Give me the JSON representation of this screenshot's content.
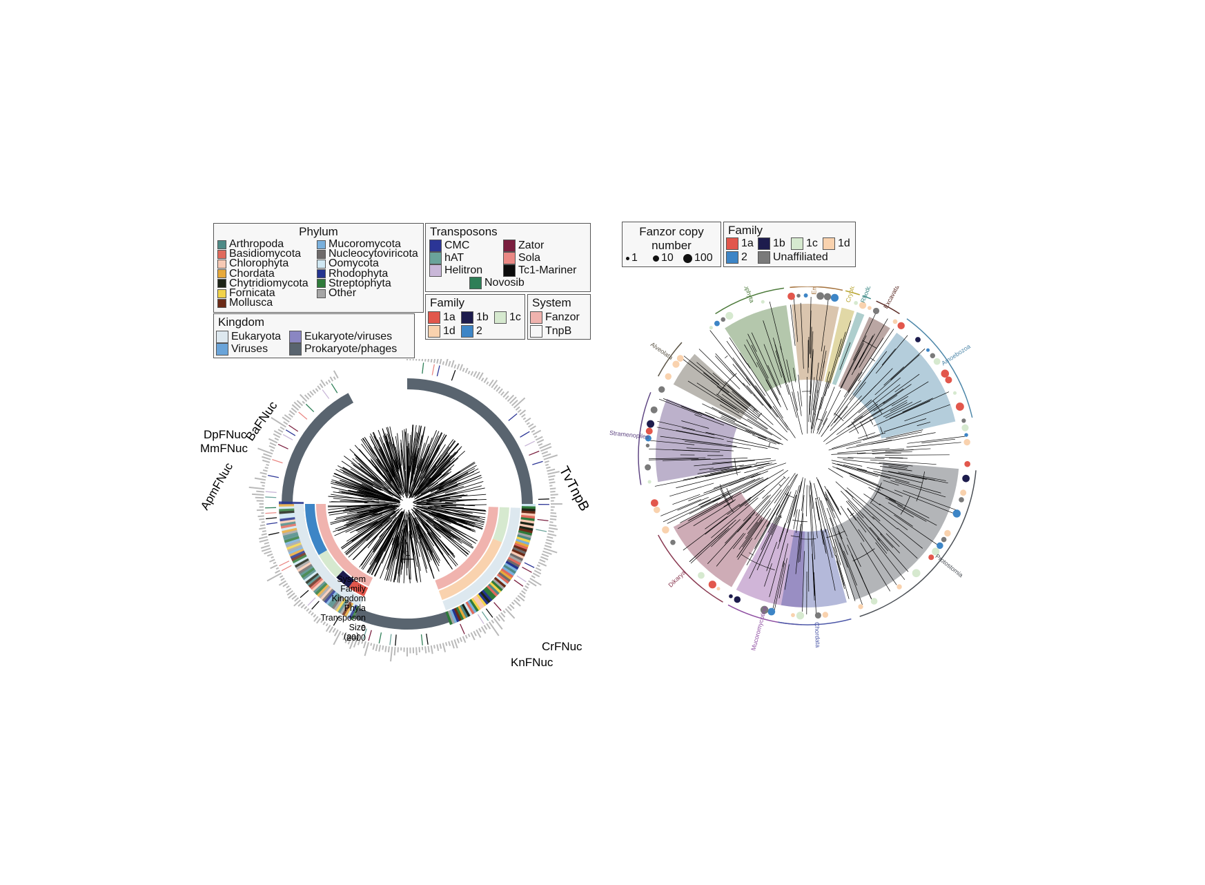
{
  "phylum_legend": {
    "title": "Phylum",
    "items": [
      {
        "label": "Arthropoda",
        "color": "#4e8a86"
      },
      {
        "label": "Basidiomycota",
        "color": "#e06a5c"
      },
      {
        "label": "Chlorophyta",
        "color": "#f7c9b4"
      },
      {
        "label": "Chordata",
        "color": "#e7a93a"
      },
      {
        "label": "Chytridiomycota",
        "color": "#1d2417"
      },
      {
        "label": "Fornicata",
        "color": "#f2d34a"
      },
      {
        "label": "Mollusca",
        "color": "#6b2a17"
      },
      {
        "label": "Mucoromycota",
        "color": "#7ab0dc"
      },
      {
        "label": "Nucleocytoviricota",
        "color": "#6e6a6a"
      },
      {
        "label": "Oomycota",
        "color": "#cfe7f2"
      },
      {
        "label": "Rhodophyta",
        "color": "#24348f"
      },
      {
        "label": "Streptophyta",
        "color": "#2f7a3a"
      },
      {
        "label": "Other",
        "color": "#a6a6a6"
      }
    ]
  },
  "kingdom_legend": {
    "title": "Kingdom",
    "items": [
      {
        "label": "Eukaryota",
        "color": "#dde8ef"
      },
      {
        "label": "Eukaryote/viruses",
        "color": "#8a86c2"
      },
      {
        "label": "Viruses",
        "color": "#6aa4d9"
      },
      {
        "label": "Prokaryote/phages",
        "color": "#59646f"
      }
    ]
  },
  "transposon_legend": {
    "title": "Transposons",
    "items": [
      {
        "label": "CMC",
        "color": "#2b3596"
      },
      {
        "label": "Zator",
        "color": "#7a1f3f"
      },
      {
        "label": "hAT",
        "color": "#6aa39a"
      },
      {
        "label": "Sola",
        "color": "#ea8884"
      },
      {
        "label": "Helitron",
        "color": "#c9b7d8"
      },
      {
        "label": "Tc1-Mariner",
        "color": "#0b0b0b"
      },
      {
        "label": "Novosib",
        "color": "#2e7f57"
      }
    ]
  },
  "family_legend_left": {
    "title": "Family",
    "items": [
      {
        "label": "1a",
        "color": "#e2574c"
      },
      {
        "label": "1b",
        "color": "#1d1c4d"
      },
      {
        "label": "1c",
        "color": "#d6e9cf"
      },
      {
        "label": "1d",
        "color": "#f9d2ae"
      },
      {
        "label": "2",
        "color": "#3d85c6"
      }
    ]
  },
  "system_legend": {
    "title": "System",
    "items": [
      {
        "label": "Fanzor",
        "color": "#f0b3ae"
      },
      {
        "label": "TnpB",
        "color": "#f7f7f7"
      }
    ]
  },
  "copy_number_legend": {
    "title": "Fanzor copy number",
    "items": [
      {
        "label": "1"
      },
      {
        "label": "10"
      },
      {
        "label": "100"
      }
    ]
  },
  "family_legend_right": {
    "title": "Family",
    "items": [
      {
        "label": "1a",
        "color": "#e2574c"
      },
      {
        "label": "1b",
        "color": "#1d1c4d"
      },
      {
        "label": "1c",
        "color": "#d6e9cf"
      },
      {
        "label": "1d",
        "color": "#f9d2ae"
      },
      {
        "label": "2",
        "color": "#3d85c6"
      },
      {
        "label": "Unaffiliated",
        "color": "#7a7a7a"
      }
    ]
  },
  "left_tree": {
    "callouts": [
      "BaFNuc",
      "DpFNuc",
      "MmFNuc",
      "ApmFNuc",
      "TvTnpB",
      "CrFNuc",
      "KnFNuc"
    ],
    "ring_labels": [
      "System",
      "Family",
      "Kingdom",
      "Phyla",
      "Transposon",
      "Size",
      "(aa)"
    ],
    "size_ticks": [
      "0",
      "2000"
    ],
    "scale_label": "1",
    "colors": {
      "prokaryote_ring": "#59646f",
      "inner_ring": "#eeeeee",
      "size_ring": "#b9b9b9",
      "branches": "#000000"
    }
  },
  "right_tree": {
    "clades": [
      {
        "label": "Alveolata",
        "color": "#5b5446"
      },
      {
        "label": "Chlorophyta",
        "color": "#4c7a3a"
      },
      {
        "label": "Embryophyta",
        "color": "#a6743f"
      },
      {
        "label": "Cryptophyceae",
        "color": "#b7a32c"
      },
      {
        "label": "Rhodophyta",
        "color": "#3e8a87"
      },
      {
        "label": "Excavata",
        "color": "#5a2a24"
      },
      {
        "label": "Amoebozoa",
        "color": "#4d87a9"
      },
      {
        "label": "Stramenopiles",
        "color": "#5f4683"
      },
      {
        "label": "Dikarya",
        "color": "#8a3a52"
      },
      {
        "label": "Mucoromycotina",
        "color": "#8e4ea1"
      },
      {
        "label": "Chordata",
        "color": "#4d58a8"
      },
      {
        "label": "Protostomia",
        "color": "#4a4f55"
      }
    ]
  }
}
